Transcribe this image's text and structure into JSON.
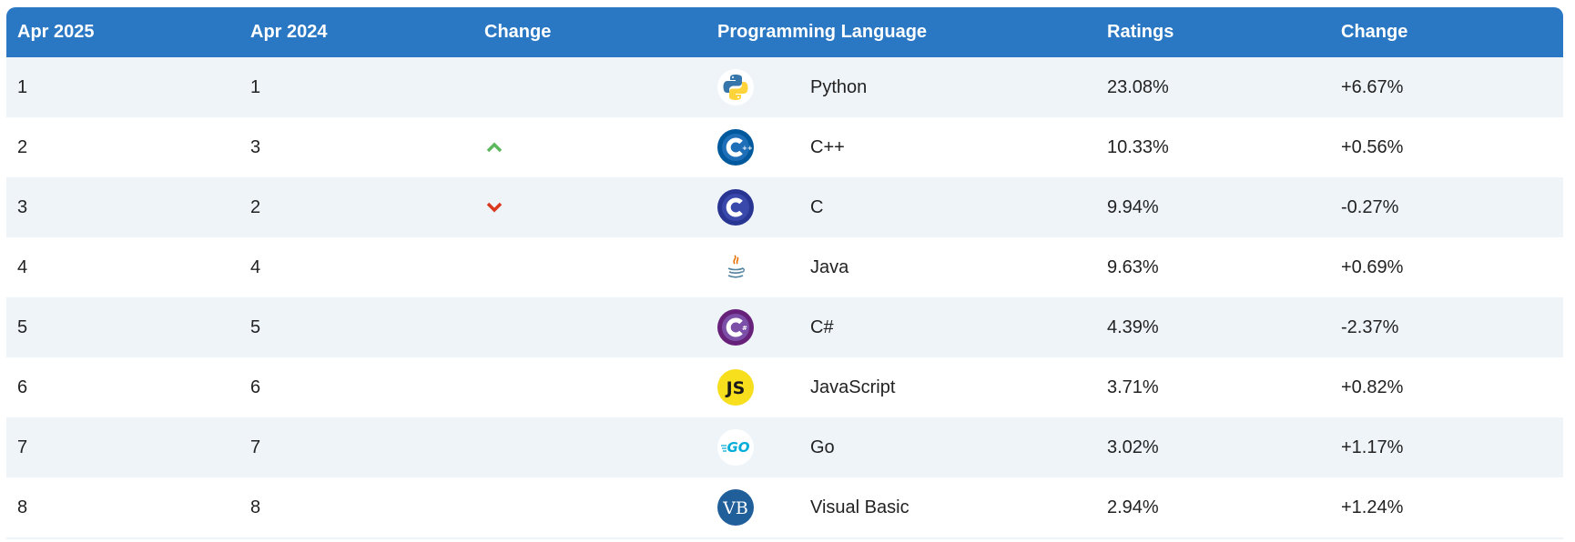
{
  "header": {
    "col_rank_2025": "Apr 2025",
    "col_rank_2024": "Apr 2024",
    "col_change_arrow": "Change",
    "col_language": "Programming Language",
    "col_ratings": "Ratings",
    "col_change": "Change"
  },
  "colors": {
    "header_bg": "#2a78c4",
    "up": "#5cb85c",
    "down": "#d9381e"
  },
  "rows": [
    {
      "rank_2025": "1",
      "rank_2024": "1",
      "trend": "none",
      "icon": "python-logo-icon",
      "language": "Python",
      "ratings": "23.08%",
      "change": "+6.67%"
    },
    {
      "rank_2025": "2",
      "rank_2024": "3",
      "trend": "up",
      "icon": "cpp-logo-icon",
      "language": "C++",
      "ratings": "10.33%",
      "change": "+0.56%"
    },
    {
      "rank_2025": "3",
      "rank_2024": "2",
      "trend": "down",
      "icon": "c-logo-icon",
      "language": "C",
      "ratings": "9.94%",
      "change": "-0.27%"
    },
    {
      "rank_2025": "4",
      "rank_2024": "4",
      "trend": "none",
      "icon": "java-logo-icon",
      "language": "Java",
      "ratings": "9.63%",
      "change": "+0.69%"
    },
    {
      "rank_2025": "5",
      "rank_2024": "5",
      "trend": "none",
      "icon": "csharp-logo-icon",
      "language": "C#",
      "ratings": "4.39%",
      "change": "-2.37%"
    },
    {
      "rank_2025": "6",
      "rank_2024": "6",
      "trend": "none",
      "icon": "javascript-logo-icon",
      "language": "JavaScript",
      "ratings": "3.71%",
      "change": "+0.82%"
    },
    {
      "rank_2025": "7",
      "rank_2024": "7",
      "trend": "none",
      "icon": "go-logo-icon",
      "language": "Go",
      "ratings": "3.02%",
      "change": "+1.17%"
    },
    {
      "rank_2025": "8",
      "rank_2024": "8",
      "trend": "none",
      "icon": "visual-basic-logo-icon",
      "language": "Visual Basic",
      "ratings": "2.94%",
      "change": "+1.24%"
    }
  ]
}
